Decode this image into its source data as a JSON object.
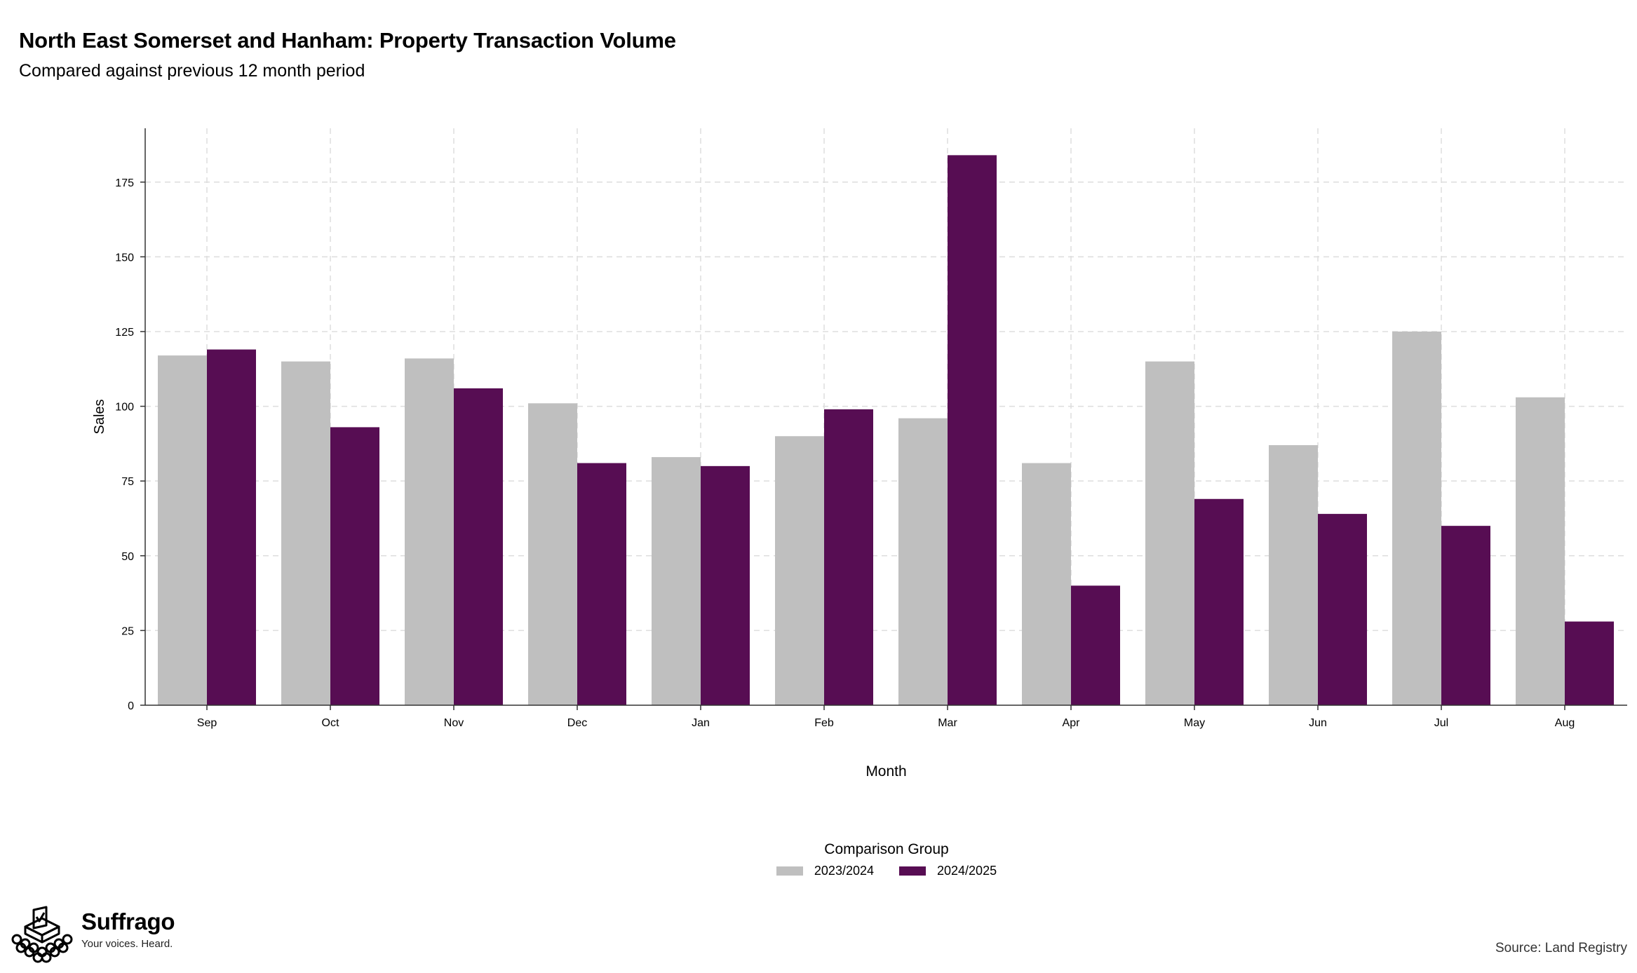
{
  "title": "North East Somerset and Hanham: Property Transaction Volume",
  "subtitle": "Compared against previous 12 month period",
  "colors": {
    "series_2023": "#bfbfbf",
    "series_2024": "#570d53",
    "grid": "#dddddd",
    "axis": "#333333"
  },
  "legend": {
    "title": "Comparison Group",
    "items": [
      "2023/2024",
      "2024/2025"
    ]
  },
  "brand": {
    "name": "Suffrago",
    "tagline": "Your voices. Heard.",
    "icon": "ballot-box-icon"
  },
  "source": "Source: Land Registry",
  "chart_data": {
    "type": "bar",
    "xlabel": "Month",
    "ylabel": "Sales",
    "ylim": [
      0,
      193
    ],
    "yticks": [
      0,
      25,
      50,
      75,
      100,
      125,
      150,
      175
    ],
    "grid": true,
    "legend_position": "bottom",
    "categories": [
      "Sep",
      "Oct",
      "Nov",
      "Dec",
      "Jan",
      "Feb",
      "Mar",
      "Apr",
      "May",
      "Jun",
      "Jul",
      "Aug"
    ],
    "series": [
      {
        "name": "2023/2024",
        "values": [
          117,
          115,
          116,
          101,
          83,
          90,
          96,
          81,
          115,
          87,
          125,
          103
        ]
      },
      {
        "name": "2024/2025",
        "values": [
          119,
          93,
          106,
          81,
          80,
          99,
          184,
          40,
          69,
          64,
          60,
          28
        ]
      }
    ]
  }
}
